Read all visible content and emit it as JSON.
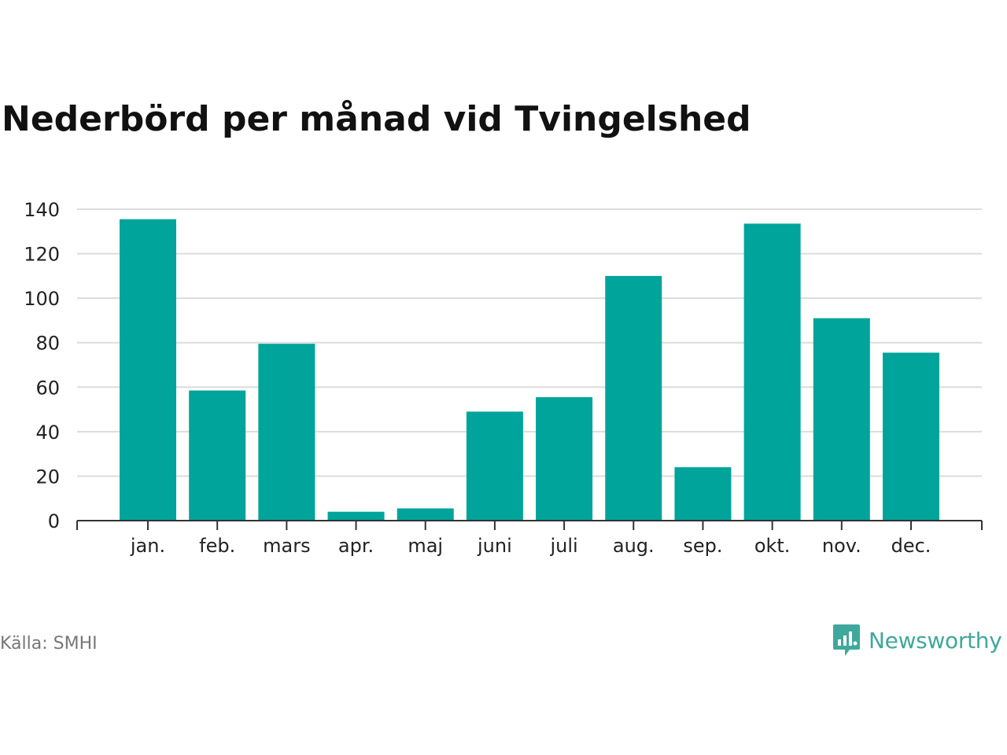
{
  "chart_data": {
    "type": "bar",
    "title": "Nederbörd per månad vid Tvingelshed",
    "categories": [
      "jan.",
      "feb.",
      "mars",
      "apr.",
      "maj",
      "juni",
      "juli",
      "aug.",
      "sep.",
      "okt.",
      "nov.",
      "dec."
    ],
    "values": [
      135.5,
      58.5,
      79.5,
      4,
      5.5,
      49,
      55.5,
      110,
      24,
      133.5,
      91,
      75.5
    ],
    "yticks": [
      0,
      20,
      40,
      60,
      80,
      100,
      120,
      140
    ],
    "ylim": [
      0,
      140
    ],
    "xlabel": "",
    "ylabel": "",
    "grid": true,
    "bar_color": "#00a49a"
  },
  "footer": {
    "source": "Källa: SMHI",
    "brand": "Newsworthy",
    "brand_icon": "newsworthy-logo-icon",
    "brand_color": "#3fa89c"
  }
}
